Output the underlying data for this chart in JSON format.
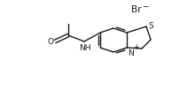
{
  "bg_color": "#ffffff",
  "br_label": "Br",
  "br_charge": "−",
  "s_label": "S",
  "n_label": "N",
  "n_charge": "+",
  "o_label": "O",
  "nh_label": "NH",
  "line_color": "#1a1a1a",
  "line_width": 1.0,
  "font_size_atom": 6.5,
  "font_size_br": 7.5,
  "font_size_charge": 5.5
}
